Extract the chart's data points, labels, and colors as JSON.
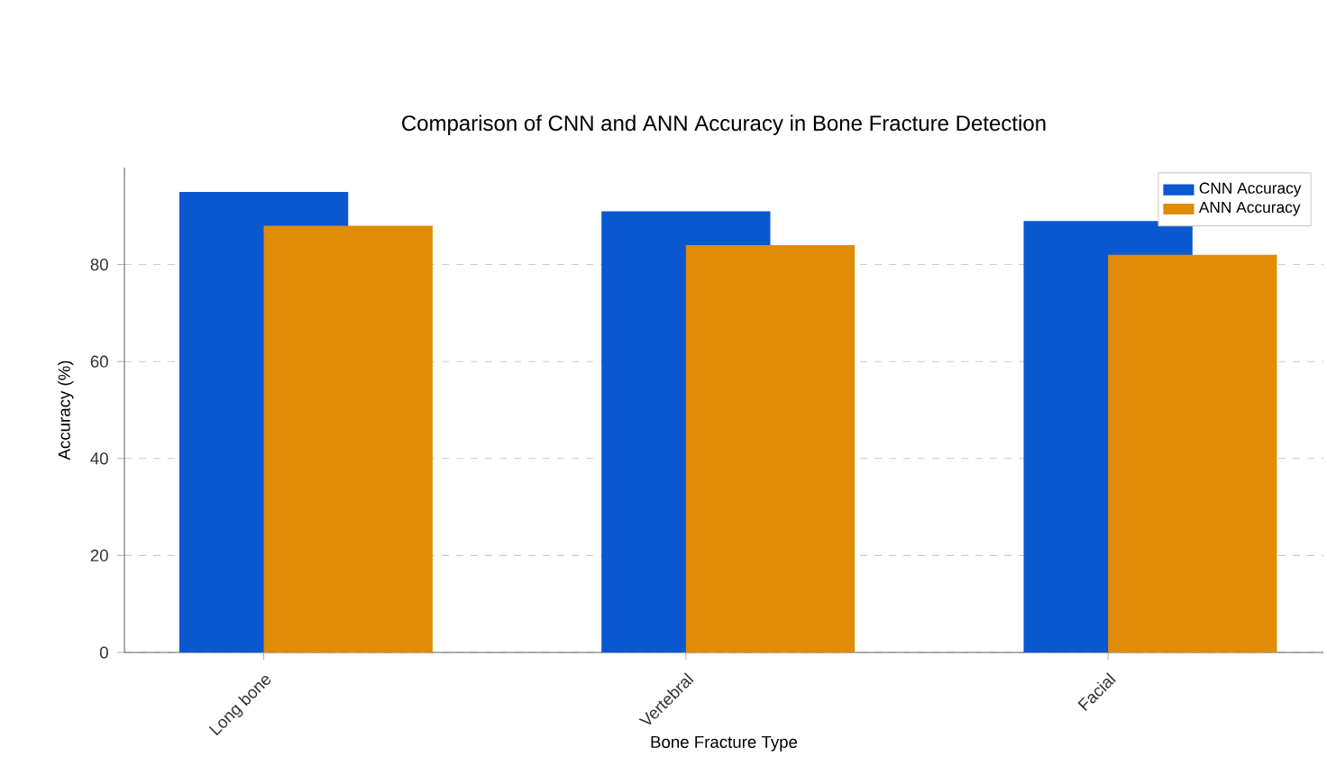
{
  "chart_data": {
    "type": "bar",
    "title": "Comparison of CNN and ANN Accuracy in Bone Fracture Detection",
    "xlabel": "Bone Fracture Type",
    "ylabel": "Accuracy (%)",
    "categories": [
      "Long bone",
      "Vertebral",
      "Facial"
    ],
    "series": [
      {
        "name": "CNN Accuracy",
        "color": "#0b57d0",
        "values": [
          95,
          91,
          89
        ]
      },
      {
        "name": "ANN Accuracy",
        "color": "#e08c06",
        "values": [
          88,
          84,
          82
        ]
      }
    ],
    "ylim": [
      0,
      100
    ],
    "yticks": [
      0,
      20,
      40,
      60,
      80
    ],
    "grid": "y",
    "legend": "top right"
  }
}
